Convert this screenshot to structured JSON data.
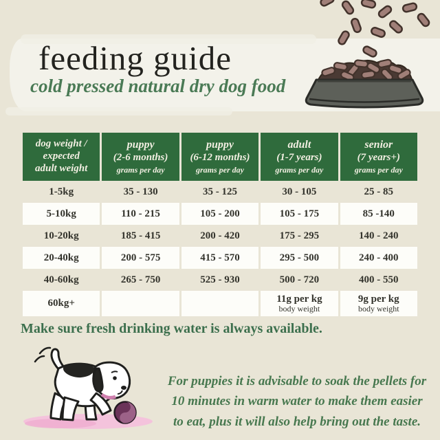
{
  "header": {
    "title": "feeding guide",
    "subtitle": "cold pressed natural dry dog food"
  },
  "table": {
    "columns": [
      {
        "lines": [
          "dog weight /",
          "expected",
          "adult weight"
        ],
        "unit": ""
      },
      {
        "lines": [
          "puppy",
          "(2-6 months)"
        ],
        "unit": "grams per day"
      },
      {
        "lines": [
          "puppy",
          "(6-12 months)"
        ],
        "unit": "grams per day"
      },
      {
        "lines": [
          "adult",
          "(1-7 years)"
        ],
        "unit": "grams per day"
      },
      {
        "lines": [
          "senior",
          "(7 years+)"
        ],
        "unit": "grams per day"
      }
    ],
    "rows": [
      {
        "weight": "1-5kg",
        "values": [
          [
            "35 - 130"
          ],
          [
            "35 - 125"
          ],
          [
            "30 - 105"
          ],
          [
            "25 - 85"
          ]
        ]
      },
      {
        "weight": "5-10kg",
        "values": [
          [
            "110 - 215"
          ],
          [
            "105 - 200"
          ],
          [
            "105 - 175"
          ],
          [
            "85 -140"
          ]
        ]
      },
      {
        "weight": "10-20kg",
        "values": [
          [
            "185 - 415"
          ],
          [
            "200 - 420"
          ],
          [
            "175 - 295"
          ],
          [
            "140 - 240"
          ]
        ]
      },
      {
        "weight": "20-40kg",
        "values": [
          [
            "200 - 575"
          ],
          [
            "415 - 570"
          ],
          [
            "295 - 500"
          ],
          [
            "240 - 400"
          ]
        ]
      },
      {
        "weight": "40-60kg",
        "values": [
          [
            "265 - 750"
          ],
          [
            "525 - 930"
          ],
          [
            "500 - 720"
          ],
          [
            "400 - 550"
          ]
        ]
      },
      {
        "weight": "60kg+",
        "values": [
          [],
          [],
          [
            "11g per kg",
            "body weight"
          ],
          [
            "9g per kg",
            "body weight"
          ]
        ]
      }
    ]
  },
  "notes": {
    "water": "Make sure fresh drinking water is always available.",
    "puppy_soak": [
      "For puppies it is advisable to soak the pellets for",
      "10 minutes in warm water to make them easier",
      "to eat, plus it will also help bring out the taste."
    ]
  },
  "illustrations": {
    "bowl": "dog-bowl-with-kibble-pellets-falling",
    "puppy": "puppy-playing-with-ball"
  },
  "colors": {
    "background": "#e9e5d6",
    "brush_stroke": "#f3f2ea",
    "header_green": "#2f6b3c",
    "header_text": "#f2efe2",
    "subtitle_green": "#4a7a55",
    "note_green": "#3c6f4d",
    "cell_text": "#33332c",
    "row_white": "#fdfdf9",
    "kibble_brown": "#a07f78",
    "bowl_gray": "#5d6059",
    "shadow_pink": "#f4c3dc",
    "ball_purple": "#6b3359"
  }
}
